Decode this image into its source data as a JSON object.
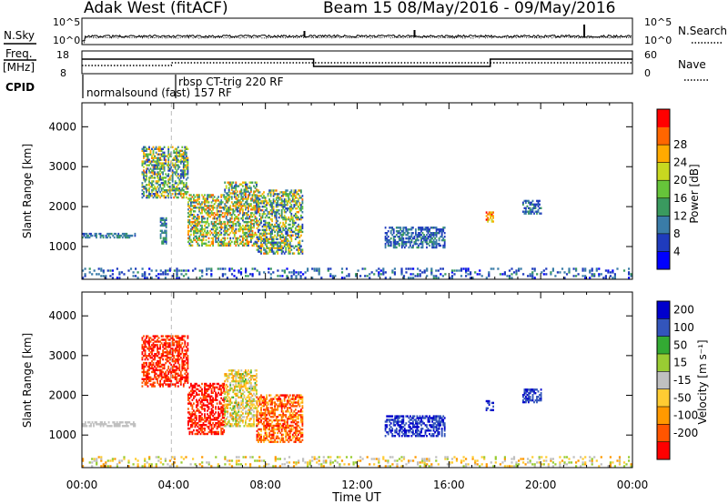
{
  "header": {
    "station": "Adak West (fitACF)",
    "beam_info": "Beam 15 08/May/2016 - 09/May/2016"
  },
  "status_panels": {
    "nsky_label": "N.Sky",
    "nsearch_label": "N.Search",
    "noise_ticks": [
      "10^5",
      "10^0"
    ],
    "freq_label": "Freq.",
    "freq_unit": "[MHz]",
    "freq_ticks": [
      "18",
      "8"
    ],
    "nave_ticks": [
      "60",
      "0"
    ],
    "nave_label": "Nave",
    "cpid_label": "CPID",
    "cpid_programs": [
      "normalsound (fast) 157 RF",
      "rbsp CT-trig 220 RF"
    ]
  },
  "x_axis": {
    "label": "Time UT",
    "ticks": [
      "00:00",
      "04:00",
      "08:00",
      "12:00",
      "16:00",
      "20:00",
      "00:00"
    ],
    "tick_hours": [
      0,
      4,
      8,
      12,
      16,
      20,
      24
    ]
  },
  "colors": {
    "power": [
      "#0000ff",
      "#1f3bbd",
      "#3a7ca8",
      "#3a9a5f",
      "#66c43a",
      "#c8d820",
      "#ffaa00",
      "#ff6600",
      "#ff0000"
    ],
    "velocity": [
      "#ff0000",
      "#ff5500",
      "#ff9900",
      "#ffcc33",
      "#c0c0c0",
      "#99cc33",
      "#33aa33",
      "#3355bb",
      "#0000cc"
    ],
    "ground": [
      "#ffcc33",
      "#ff9900",
      "#99cc33",
      "#c0c0c0"
    ]
  },
  "chart_data": [
    {
      "type": "heatmap",
      "panel": "power",
      "ylabel": "Slant Range [km]",
      "xlabel": "",
      "xlim_hours": [
        0,
        24
      ],
      "ylim_km": [
        180,
        4600
      ],
      "yticks": [
        1000,
        2000,
        3000,
        4000
      ],
      "colorbar": {
        "label": "Power [dB]",
        "ticks": [
          4,
          8,
          12,
          16,
          20,
          24,
          28
        ],
        "range": [
          0,
          32
        ]
      },
      "echo_regions": [
        {
          "t0": 0.0,
          "t1": 2.3,
          "r0": 1200,
          "r1": 1330,
          "v0": 6,
          "v1": 12
        },
        {
          "t0": 2.6,
          "t1": 4.6,
          "r0": 2200,
          "r1": 3500,
          "v0": 4,
          "v1": 26
        },
        {
          "t0": 3.4,
          "t1": 3.7,
          "r0": 1050,
          "r1": 1700,
          "v0": 6,
          "v1": 14
        },
        {
          "t0": 4.6,
          "t1": 6.2,
          "r0": 1000,
          "r1": 2300,
          "v0": 6,
          "v1": 28
        },
        {
          "t0": 6.2,
          "t1": 7.6,
          "r0": 1000,
          "r1": 2600,
          "v0": 6,
          "v1": 28
        },
        {
          "t0": 7.6,
          "t1": 9.6,
          "r0": 800,
          "r1": 2400,
          "v0": 4,
          "v1": 26
        },
        {
          "t0": 13.2,
          "t1": 15.8,
          "r0": 950,
          "r1": 1450,
          "v0": 4,
          "v1": 12
        },
        {
          "t0": 17.6,
          "t1": 17.9,
          "r0": 1600,
          "r1": 1850,
          "v0": 18,
          "v1": 30
        },
        {
          "t0": 19.2,
          "t1": 20.0,
          "r0": 1800,
          "r1": 2150,
          "v0": 4,
          "v1": 12
        },
        {
          "t0": 0.0,
          "t1": 24.0,
          "r0": 190,
          "r1": 420,
          "v0": 2,
          "v1": 12
        }
      ]
    },
    {
      "type": "heatmap",
      "panel": "velocity",
      "ylabel": "Slant Range [km]",
      "xlabel": "Time UT",
      "xlim_hours": [
        0,
        24
      ],
      "ylim_km": [
        180,
        4600
      ],
      "yticks": [
        1000,
        2000,
        3000,
        4000
      ],
      "colorbar": {
        "label": "Velocity [m s⁻¹]",
        "ticks": [
          200,
          100,
          50,
          15,
          -15,
          -50,
          -100,
          -200
        ],
        "range": [
          -250,
          250
        ]
      },
      "echo_regions": [
        {
          "t0": 0.0,
          "t1": 2.3,
          "r0": 1200,
          "r1": 1330,
          "v0": -10,
          "v1": 10
        },
        {
          "t0": 2.6,
          "t1": 4.6,
          "r0": 2200,
          "r1": 3500,
          "v0": -250,
          "v1": -150
        },
        {
          "t0": 4.6,
          "t1": 6.2,
          "r0": 1000,
          "r1": 2300,
          "v0": -250,
          "v1": -180
        },
        {
          "t0": 6.2,
          "t1": 7.6,
          "r0": 1200,
          "r1": 2600,
          "v0": -80,
          "v1": 60
        },
        {
          "t0": 7.6,
          "t1": 9.6,
          "r0": 800,
          "r1": 2000,
          "v0": -250,
          "v1": -20
        },
        {
          "t0": 13.2,
          "t1": 15.8,
          "r0": 950,
          "r1": 1450,
          "v0": 150,
          "v1": 250
        },
        {
          "t0": 17.6,
          "t1": 17.9,
          "r0": 1600,
          "r1": 1850,
          "v0": 150,
          "v1": 250
        },
        {
          "t0": 19.2,
          "t1": 20.0,
          "r0": 1800,
          "r1": 2150,
          "v0": 150,
          "v1": 250
        },
        {
          "t0": 0.0,
          "t1": 24.0,
          "r0": 190,
          "r1": 420,
          "v0": -60,
          "v1": 60
        }
      ]
    }
  ]
}
